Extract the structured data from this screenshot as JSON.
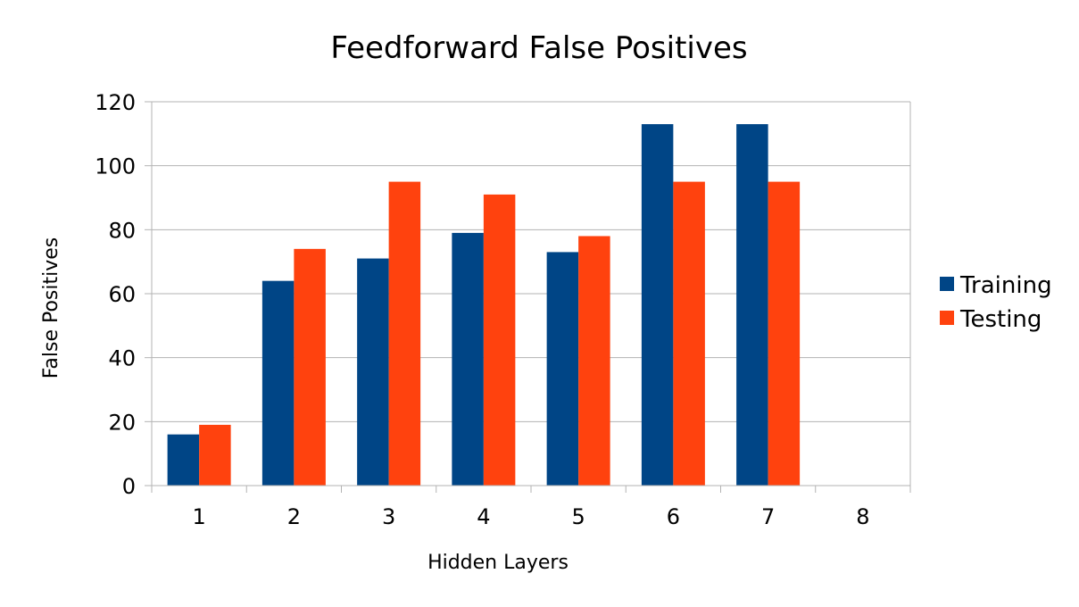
{
  "chart_data": {
    "type": "bar",
    "title": "Feedforward False Positives",
    "xlabel": "Hidden Layers",
    "ylabel": "False Positives",
    "categories": [
      "1",
      "2",
      "3",
      "4",
      "5",
      "6",
      "7",
      "8"
    ],
    "series": [
      {
        "name": "Training",
        "color": "#004586",
        "values": [
          16,
          64,
          71,
          79,
          73,
          113,
          113,
          null
        ]
      },
      {
        "name": "Testing",
        "color": "#ff420e",
        "values": [
          19,
          74,
          95,
          91,
          78,
          95,
          95,
          null
        ]
      }
    ],
    "ylim": [
      0,
      120
    ],
    "yticks": [
      0,
      20,
      40,
      60,
      80,
      100,
      120
    ],
    "grid": true,
    "legend_position": "right"
  }
}
